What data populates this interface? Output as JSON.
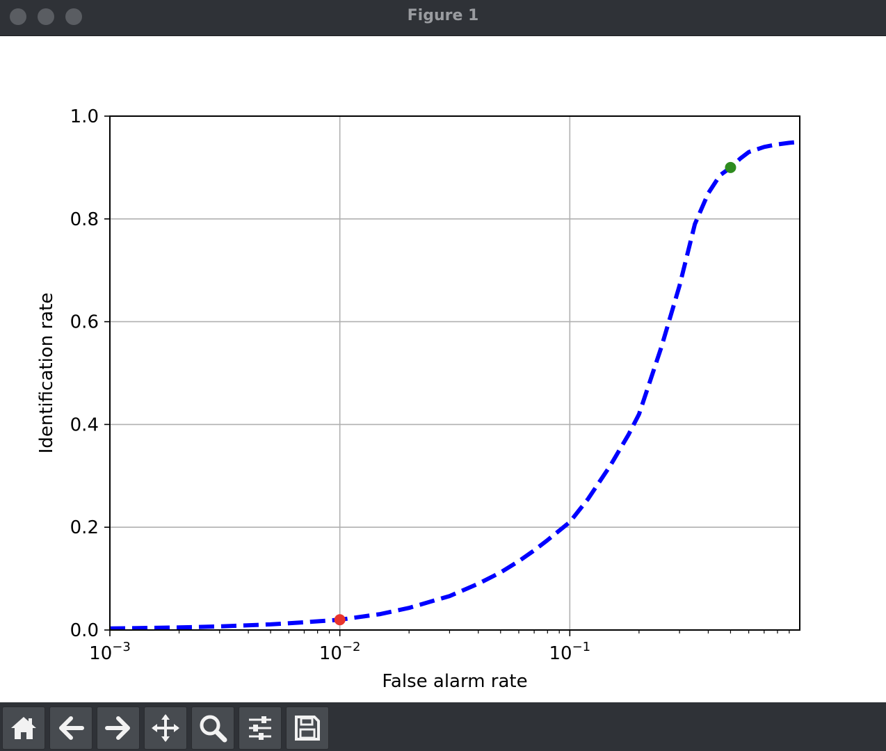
{
  "window": {
    "title": "Figure 1"
  },
  "toolbar": {
    "buttons": [
      {
        "icon": "home-icon"
      },
      {
        "icon": "back-arrow-icon"
      },
      {
        "icon": "forward-arrow-icon"
      },
      {
        "icon": "pan-move-icon"
      },
      {
        "icon": "zoom-magnifier-icon"
      },
      {
        "icon": "configure-subplots-icon"
      },
      {
        "icon": "save-floppy-icon"
      }
    ]
  },
  "chart_data": {
    "type": "line",
    "xlabel": "False alarm rate",
    "ylabel": "Identification rate",
    "xscale": "log",
    "xlim": [
      0.001,
      1.0
    ],
    "ylim": [
      0.0,
      1.0
    ],
    "grid": true,
    "x_tick_labels": [
      "10",
      "10",
      "10"
    ],
    "x_tick_exponents": [
      "−3",
      "−2",
      "−1"
    ],
    "x_ticks": [
      0.001,
      0.01,
      0.1
    ],
    "y_ticks": [
      0.0,
      0.2,
      0.4,
      0.6,
      0.8,
      1.0
    ],
    "y_tick_labels": [
      "0.0",
      "0.2",
      "0.4",
      "0.6",
      "0.8",
      "1.0"
    ],
    "series": [
      {
        "style": "dashed",
        "color": "#0000ff",
        "x": [
          0.001,
          0.002,
          0.003,
          0.005,
          0.007,
          0.01,
          0.015,
          0.02,
          0.03,
          0.04,
          0.05,
          0.06,
          0.07,
          0.08,
          0.1,
          0.12,
          0.15,
          0.18,
          0.2,
          0.25,
          0.3,
          0.35,
          0.4,
          0.45,
          0.5,
          0.55,
          0.6,
          0.7,
          0.8,
          0.9,
          1.0
        ],
        "y": [
          0.003,
          0.005,
          0.007,
          0.011,
          0.015,
          0.02,
          0.031,
          0.043,
          0.066,
          0.09,
          0.112,
          0.134,
          0.155,
          0.175,
          0.21,
          0.255,
          0.32,
          0.38,
          0.42,
          0.55,
          0.67,
          0.79,
          0.85,
          0.885,
          0.9,
          0.917,
          0.93,
          0.94,
          0.945,
          0.948,
          0.95
        ]
      }
    ],
    "markers": [
      {
        "x": 0.01,
        "y": 0.02,
        "color": "#e8342c"
      },
      {
        "x": 0.5,
        "y": 0.9,
        "color": "#2e8b1e"
      }
    ]
  }
}
